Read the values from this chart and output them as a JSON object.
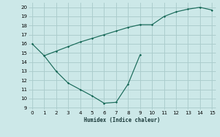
{
  "title": "",
  "xlabel": "Humidex (Indice chaleur)",
  "bg_color": "#cce8e8",
  "grid_color": "#aacccc",
  "line_color": "#1a6b5a",
  "upper_x": [
    0,
    1,
    2,
    3,
    4,
    5,
    6,
    7,
    8,
    9,
    10,
    11,
    12,
    13,
    14,
    15
  ],
  "upper_y": [
    16.0,
    14.7,
    15.2,
    15.7,
    16.2,
    16.6,
    17.0,
    17.4,
    17.8,
    18.1,
    18.1,
    19.0,
    19.5,
    19.8,
    20.0,
    19.7
  ],
  "lower_x": [
    1,
    2,
    3,
    4,
    5,
    6,
    7,
    8,
    9
  ],
  "lower_y": [
    14.7,
    13.0,
    11.7,
    11.0,
    10.3,
    9.5,
    9.6,
    11.6,
    14.8
  ],
  "xlim": [
    -0.3,
    15.3
  ],
  "ylim": [
    8.8,
    20.5
  ],
  "xticks": [
    0,
    1,
    2,
    3,
    4,
    5,
    6,
    7,
    8,
    9,
    10,
    11,
    12,
    13,
    14,
    15
  ],
  "yticks": [
    9,
    10,
    11,
    12,
    13,
    14,
    15,
    16,
    17,
    18,
    19,
    20
  ]
}
